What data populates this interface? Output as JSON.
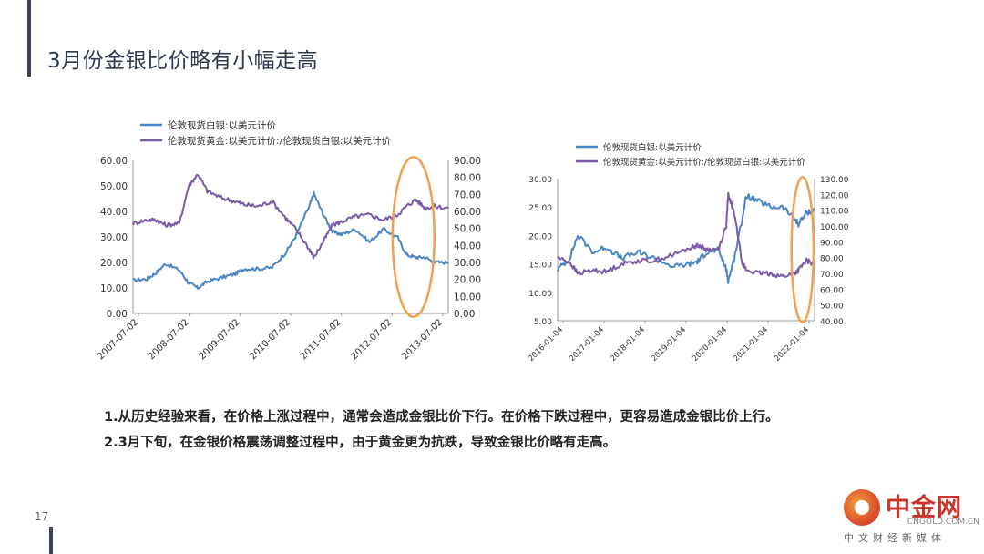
{
  "page": {
    "title": "3月份金银比价略有小幅走高",
    "page_number": "17",
    "notes": [
      "1.从历史经验来看，在价格上涨过程中，通常会造成金银比价下行。在价格下跌过程中，更容易造成金银比价上行。",
      "2.3月下旬，在金银价格震荡调整过程中，由于黄金更为抗跌，导致金银比价略有走高。"
    ]
  },
  "logo": {
    "main": "中金网",
    "url": "CNGOLD.COM.CN",
    "slogan": "中文财经新媒体"
  },
  "colors": {
    "silver": "#4a86c5",
    "ratio": "#7b5ba6",
    "highlight": "#f0a050",
    "axis": "#999999",
    "title": "#2f3a4f"
  },
  "chart_data": [
    {
      "type": "line",
      "legend": [
        "伦敦现货白银:以美元计价",
        "伦敦现货黄金:以美元计价:/伦敦现货白银:以美元计价"
      ],
      "legend_position": "top-left",
      "x_ticks": [
        "2007-07-02",
        "2008-07-02",
        "2009-07-02",
        "2010-07-02",
        "2011-07-02",
        "2012-07-02",
        "2013-07-02"
      ],
      "y_left": {
        "ticks": [
          "0.00",
          "10.00",
          "20.00",
          "30.00",
          "40.00",
          "50.00",
          "60.00"
        ],
        "range": [
          0,
          60
        ]
      },
      "y_right": {
        "ticks": [
          "0.00",
          "10.00",
          "20.00",
          "30.00",
          "40.00",
          "50.00",
          "60.00",
          "70.00",
          "80.00",
          "90.00"
        ],
        "range": [
          0,
          90
        ]
      },
      "x_range": [
        2007.5,
        2014.3
      ],
      "grid": false,
      "series": [
        {
          "name": "伦敦现货白银:以美元计价",
          "axis": "left",
          "x": [
            2007.5,
            2007.8,
            2008.0,
            2008.2,
            2008.5,
            2008.7,
            2008.9,
            2009.1,
            2009.4,
            2009.7,
            2009.9,
            2010.2,
            2010.5,
            2010.8,
            2011.0,
            2011.3,
            2011.4,
            2011.6,
            2011.8,
            2012.0,
            2012.3,
            2012.6,
            2012.9,
            2013.2,
            2013.4,
            2013.6,
            2013.8,
            2014.0,
            2014.3
          ],
          "y": [
            13,
            13.5,
            16,
            19.5,
            17,
            12,
            10,
            12.5,
            14,
            15.5,
            17.5,
            17.5,
            18,
            24,
            30,
            42,
            47,
            39,
            32,
            31,
            33,
            28,
            33,
            30,
            23,
            22,
            22,
            20,
            20
          ]
        },
        {
          "name": "伦敦现货黄金:以美元计价:/伦敦现货白银:以美元计价",
          "axis": "right",
          "x": [
            2007.5,
            2007.8,
            2008.0,
            2008.2,
            2008.5,
            2008.7,
            2008.9,
            2009.1,
            2009.4,
            2009.7,
            2009.9,
            2010.2,
            2010.5,
            2010.8,
            2011.0,
            2011.3,
            2011.4,
            2011.6,
            2011.8,
            2012.0,
            2012.3,
            2012.6,
            2012.9,
            2013.2,
            2013.4,
            2013.6,
            2013.8,
            2014.0,
            2014.3
          ],
          "y": [
            53,
            55,
            55,
            52,
            53,
            75,
            82,
            72,
            68,
            66,
            64,
            63,
            66,
            56,
            50,
            38,
            33,
            42,
            52,
            54,
            57,
            58,
            55,
            58,
            63,
            67,
            62,
            63,
            62
          ]
        }
      ],
      "annotations": [
        {
          "type": "ellipse",
          "x_center": 2013.55,
          "x_width": 0.9,
          "y_center": 45,
          "y_height": 94,
          "axis": "right"
        }
      ]
    },
    {
      "type": "line",
      "legend": [
        "伦敦现货白银:以美元计价",
        "伦敦现货黄金:以美元计价:/伦敦现货白银:以美元计价"
      ],
      "legend_position": "top-left",
      "x_ticks": [
        "2016-01-04",
        "2017-01-04",
        "2018-01-04",
        "2019-01-04",
        "2020-01-04",
        "2021-01-04",
        "2022-01-04"
      ],
      "y_left": {
        "ticks": [
          "5.00",
          "10.00",
          "15.00",
          "20.00",
          "25.00",
          "30.00"
        ],
        "range": [
          5,
          30
        ]
      },
      "y_right": {
        "ticks": [
          "40.00",
          "50.00",
          "60.00",
          "70.00",
          "80.00",
          "90.00",
          "100.00",
          "110.00",
          "120.00",
          "130.00"
        ],
        "range": [
          40,
          130
        ]
      },
      "x_range": [
        2016.0,
        2022.4
      ],
      "grid": false,
      "series": [
        {
          "name": "伦敦现货白银:以美元计价",
          "axis": "left",
          "x": [
            2016.0,
            2016.3,
            2016.5,
            2016.9,
            2017.2,
            2017.6,
            2018.0,
            2018.4,
            2018.9,
            2019.3,
            2019.5,
            2019.7,
            2020.0,
            2020.2,
            2020.25,
            2020.4,
            2020.6,
            2020.7,
            2021.0,
            2021.3,
            2021.6,
            2021.9,
            2022.0,
            2022.2,
            2022.4
          ],
          "y": [
            14,
            16,
            20,
            17,
            18,
            16,
            17,
            16,
            14.5,
            15,
            15.5,
            17,
            17.5,
            14,
            12,
            16,
            23,
            27,
            26,
            25,
            25,
            23,
            22,
            24,
            24.5
          ]
        },
        {
          "name": "伦敦现货黄金:以美元计价:/伦敦现货白银:以美元计价",
          "axis": "right",
          "x": [
            2016.0,
            2016.3,
            2016.5,
            2016.9,
            2017.2,
            2017.6,
            2018.0,
            2018.4,
            2018.9,
            2019.3,
            2019.5,
            2019.7,
            2020.0,
            2020.2,
            2020.25,
            2020.4,
            2020.6,
            2020.7,
            2021.0,
            2021.3,
            2021.6,
            2021.9,
            2022.0,
            2022.2,
            2022.4
          ],
          "y": [
            80,
            77,
            70,
            72,
            71,
            76,
            78,
            78,
            82,
            86,
            88,
            85,
            85,
            100,
            120,
            108,
            77,
            72,
            70,
            70,
            68,
            70,
            72,
            78,
            76
          ]
        }
      ],
      "annotations": [
        {
          "type": "ellipse",
          "x_center": 2022.1,
          "x_width": 0.55,
          "y_center": 85,
          "y_height": 92,
          "axis": "right"
        }
      ]
    }
  ]
}
